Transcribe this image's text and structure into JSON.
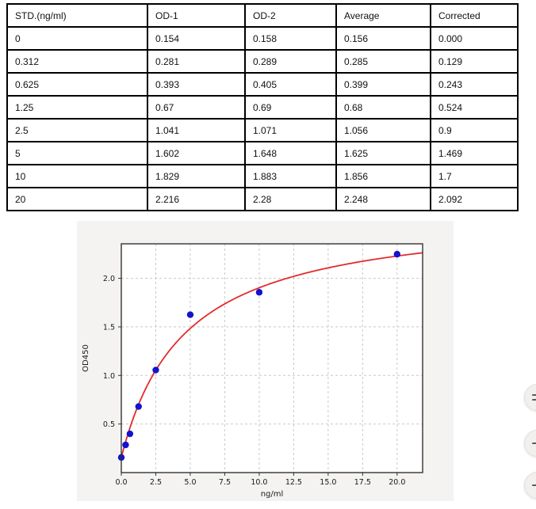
{
  "page": {
    "background": "#ffffff"
  },
  "table": {
    "headers": [
      "STD.(ng/ml)",
      "OD-1",
      "OD-2",
      "Average",
      "Corrected"
    ],
    "rows": [
      [
        "0",
        "0.154",
        "0.158",
        "0.156",
        "0.000"
      ],
      [
        "0.312",
        "0.281",
        "0.289",
        "0.285",
        "0.129"
      ],
      [
        "0.625",
        "0.393",
        "0.405",
        "0.399",
        "0.243"
      ],
      [
        "1.25",
        "0.67",
        "0.69",
        "0.68",
        "0.524"
      ],
      [
        "2.5",
        "1.041",
        "1.071",
        "1.056",
        "0.9"
      ],
      [
        "5",
        "1.602",
        "1.648",
        "1.625",
        "1.469"
      ],
      [
        "10",
        "1.829",
        "1.883",
        "1.856",
        "1.7"
      ],
      [
        "20",
        "2.216",
        "2.28",
        "2.248",
        "2.092"
      ]
    ]
  },
  "chart_data": {
    "type": "scatter",
    "title": "",
    "xlabel": "ng/ml",
    "ylabel": "OD450",
    "xlim": [
      0,
      21.85
    ],
    "ylim": [
      0,
      2.355
    ],
    "x_ticks": [
      0.0,
      2.5,
      5.0,
      7.5,
      10.0,
      12.5,
      15.0,
      17.5,
      20.0
    ],
    "x_tick_labels": [
      "0.0",
      "2.5",
      "5.0",
      "7.5",
      "10.0",
      "12.5",
      "15.0",
      "17.5",
      "20.0"
    ],
    "y_ticks": [
      0.5,
      1.0,
      1.5,
      2.0
    ],
    "y_tick_labels": [
      "0.5",
      "1.0",
      "1.5",
      "2.0"
    ],
    "grid": true,
    "legend": "none",
    "points": [
      [
        0,
        0.156
      ],
      [
        0.312,
        0.285
      ],
      [
        0.625,
        0.399
      ],
      [
        1.25,
        0.68
      ],
      [
        2.5,
        1.056
      ],
      [
        5,
        1.625
      ],
      [
        10,
        1.856
      ],
      [
        20,
        2.248
      ]
    ],
    "fit_curve": {
      "model": "y = y0 + vmax*x/(km+x)",
      "y0": 0.156,
      "vmax": 2.55,
      "km": 4.6
    },
    "colors": {
      "figure_bg": "#f4f3f1",
      "plot_bg": "#ffffff",
      "spine": "#333333",
      "grid": "#c9c9c9",
      "tick_text": "#1a1a1a",
      "point": "#1212d0",
      "curve": "#e32b2b"
    }
  },
  "floating_buttons": {
    "items": [
      {
        "name": "widget-button-top",
        "icon": "dots-icon",
        "glyph_count": 2
      },
      {
        "name": "widget-button-middle",
        "icon": "dash-icon",
        "glyph_count": 1
      },
      {
        "name": "widget-button-bottom",
        "icon": "dash-icon",
        "glyph_count": 1
      }
    ]
  }
}
